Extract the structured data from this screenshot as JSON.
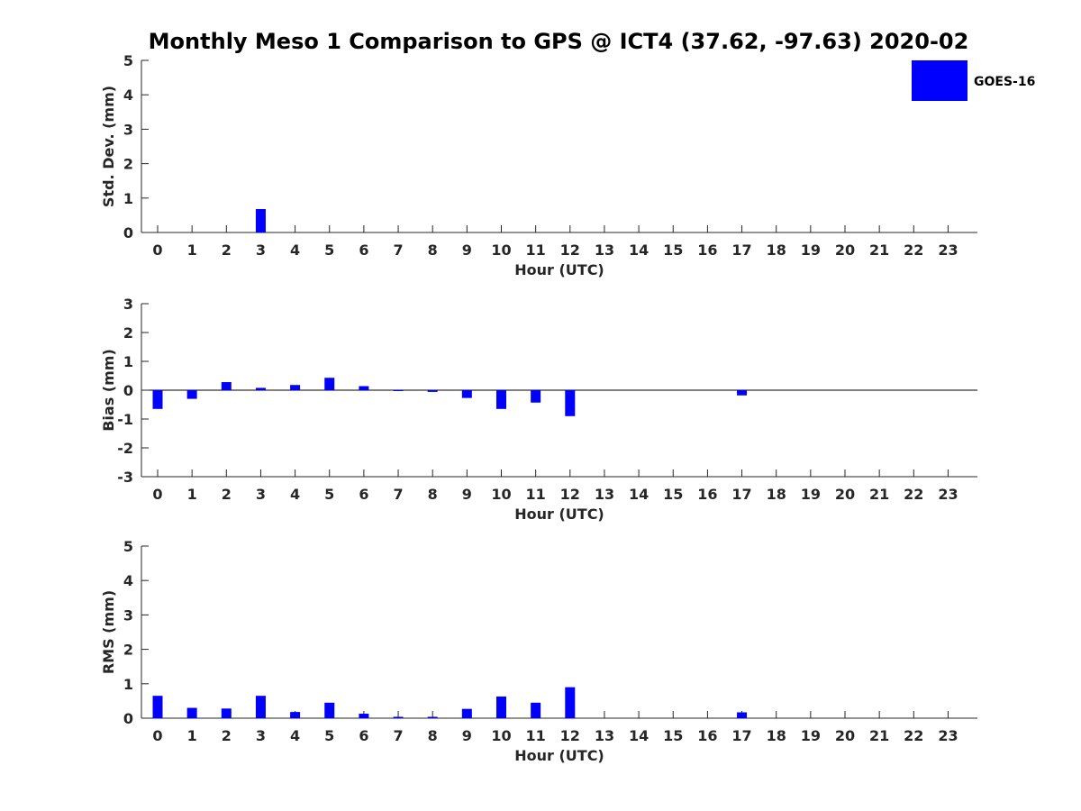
{
  "chart_data": {
    "type": "bar",
    "title": "Monthly Meso 1 Comparison to GPS @ ICT4 (37.62, -97.63) 2020-02",
    "legend": {
      "placement": "top-right",
      "entries": [
        {
          "label": "GOES-16",
          "color": "#0000ff"
        }
      ]
    },
    "categories": [
      "0",
      "1",
      "2",
      "3",
      "4",
      "5",
      "6",
      "7",
      "8",
      "9",
      "10",
      "11",
      "12",
      "13",
      "14",
      "15",
      "16",
      "17",
      "18",
      "19",
      "20",
      "21",
      "22",
      "23"
    ],
    "panels": [
      {
        "id": "stddev",
        "xlabel": "Hour (UTC)",
        "ylabel": "Std. Dev. (mm)",
        "ylim": [
          0,
          5
        ],
        "yticks": [
          0,
          1,
          2,
          3,
          4,
          5
        ],
        "zero_line": false,
        "series": [
          {
            "name": "GOES-16",
            "color": "#0000ff",
            "values": [
              null,
              null,
              null,
              0.68,
              null,
              null,
              null,
              null,
              null,
              null,
              null,
              null,
              null,
              null,
              null,
              null,
              null,
              null,
              null,
              null,
              null,
              null,
              null,
              null
            ]
          }
        ]
      },
      {
        "id": "bias",
        "xlabel": "Hour (UTC)",
        "ylabel": "Bias (mm)",
        "ylim": [
          -3,
          3
        ],
        "yticks": [
          -3,
          -2,
          -1,
          0,
          1,
          2,
          3
        ],
        "zero_line": true,
        "series": [
          {
            "name": "GOES-16",
            "color": "#0000ff",
            "values": [
              -0.65,
              -0.3,
              0.28,
              0.08,
              0.18,
              0.43,
              0.14,
              -0.02,
              -0.06,
              -0.27,
              -0.65,
              -0.43,
              -0.9,
              null,
              null,
              null,
              null,
              -0.18,
              null,
              null,
              null,
              null,
              null,
              null
            ]
          }
        ]
      },
      {
        "id": "rms",
        "xlabel": "Hour (UTC)",
        "ylabel": "RMS (mm)",
        "ylim": [
          0,
          5
        ],
        "yticks": [
          0,
          1,
          2,
          3,
          4,
          5
        ],
        "zero_line": false,
        "series": [
          {
            "name": "GOES-16",
            "color": "#0000ff",
            "values": [
              0.65,
              0.3,
              0.28,
              0.65,
              0.18,
              0.45,
              0.13,
              0.04,
              0.04,
              0.27,
              0.63,
              0.45,
              0.9,
              null,
              null,
              null,
              null,
              0.17,
              null,
              null,
              null,
              null,
              null,
              null
            ]
          }
        ]
      }
    ]
  }
}
